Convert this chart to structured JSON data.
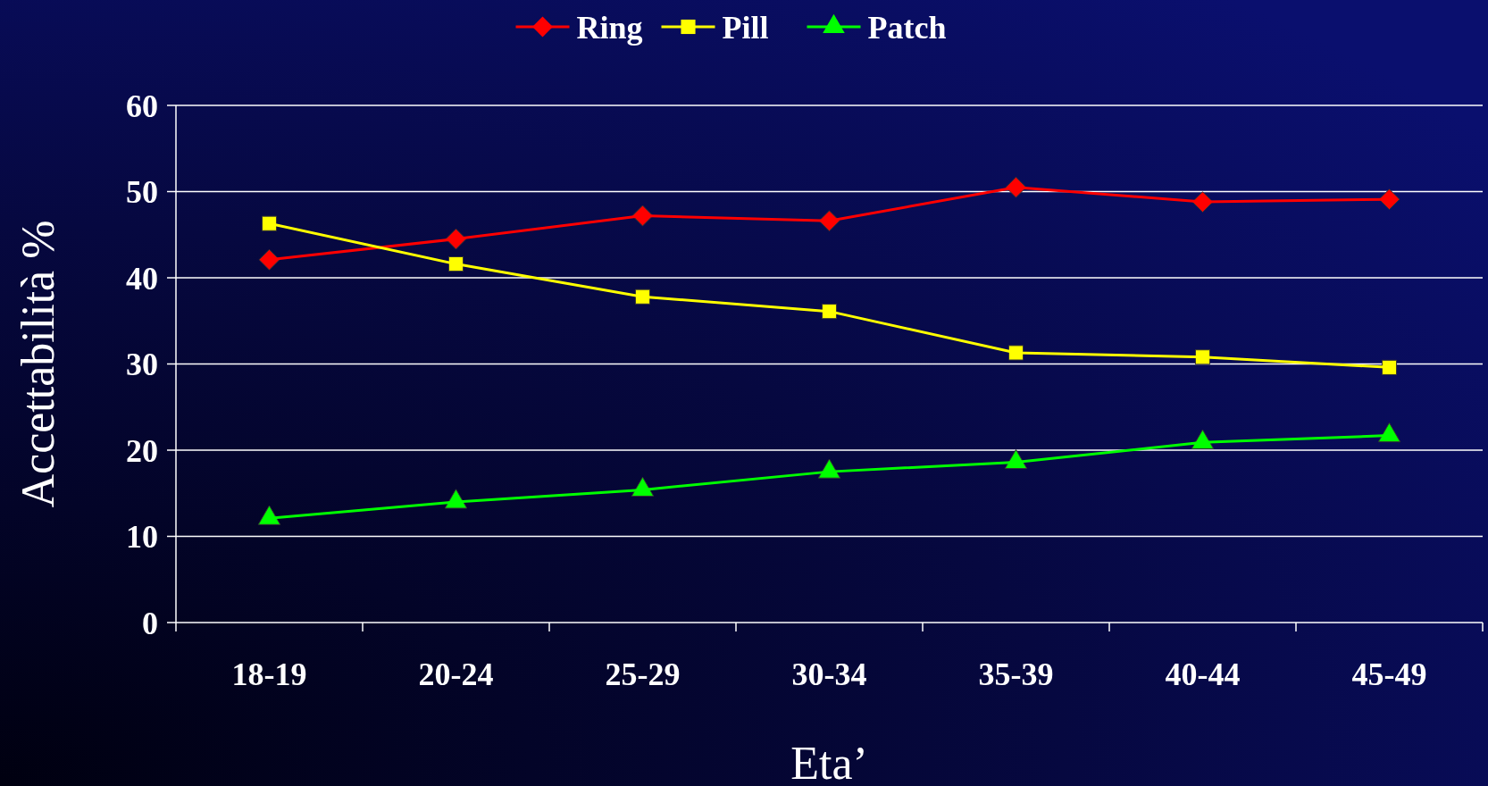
{
  "chart_data": {
    "type": "line",
    "xlabel": "Eta’",
    "ylabel": "Accettabilità %",
    "categories": [
      "18-19",
      "20-24",
      "25-29",
      "30-34",
      "35-39",
      "40-44",
      "45-49"
    ],
    "series": [
      {
        "name": "Ring",
        "color": "#ff0000",
        "marker": "diamond",
        "values": [
          42.1,
          44.5,
          47.2,
          46.6,
          50.5,
          48.8,
          49.1
        ]
      },
      {
        "name": "Pill",
        "color": "#ffff00",
        "marker": "square",
        "values": [
          46.3,
          41.6,
          37.8,
          36.1,
          31.3,
          30.8,
          29.6
        ]
      },
      {
        "name": "Patch",
        "color": "#00ff00",
        "marker": "triangle",
        "values": [
          12.1,
          14.0,
          15.4,
          17.5,
          18.6,
          20.9,
          21.7
        ]
      }
    ],
    "ylim": [
      0,
      60
    ],
    "yticks": [
      0,
      10,
      20,
      30,
      40,
      50,
      60
    ],
    "grid": "y",
    "legend": "top"
  }
}
